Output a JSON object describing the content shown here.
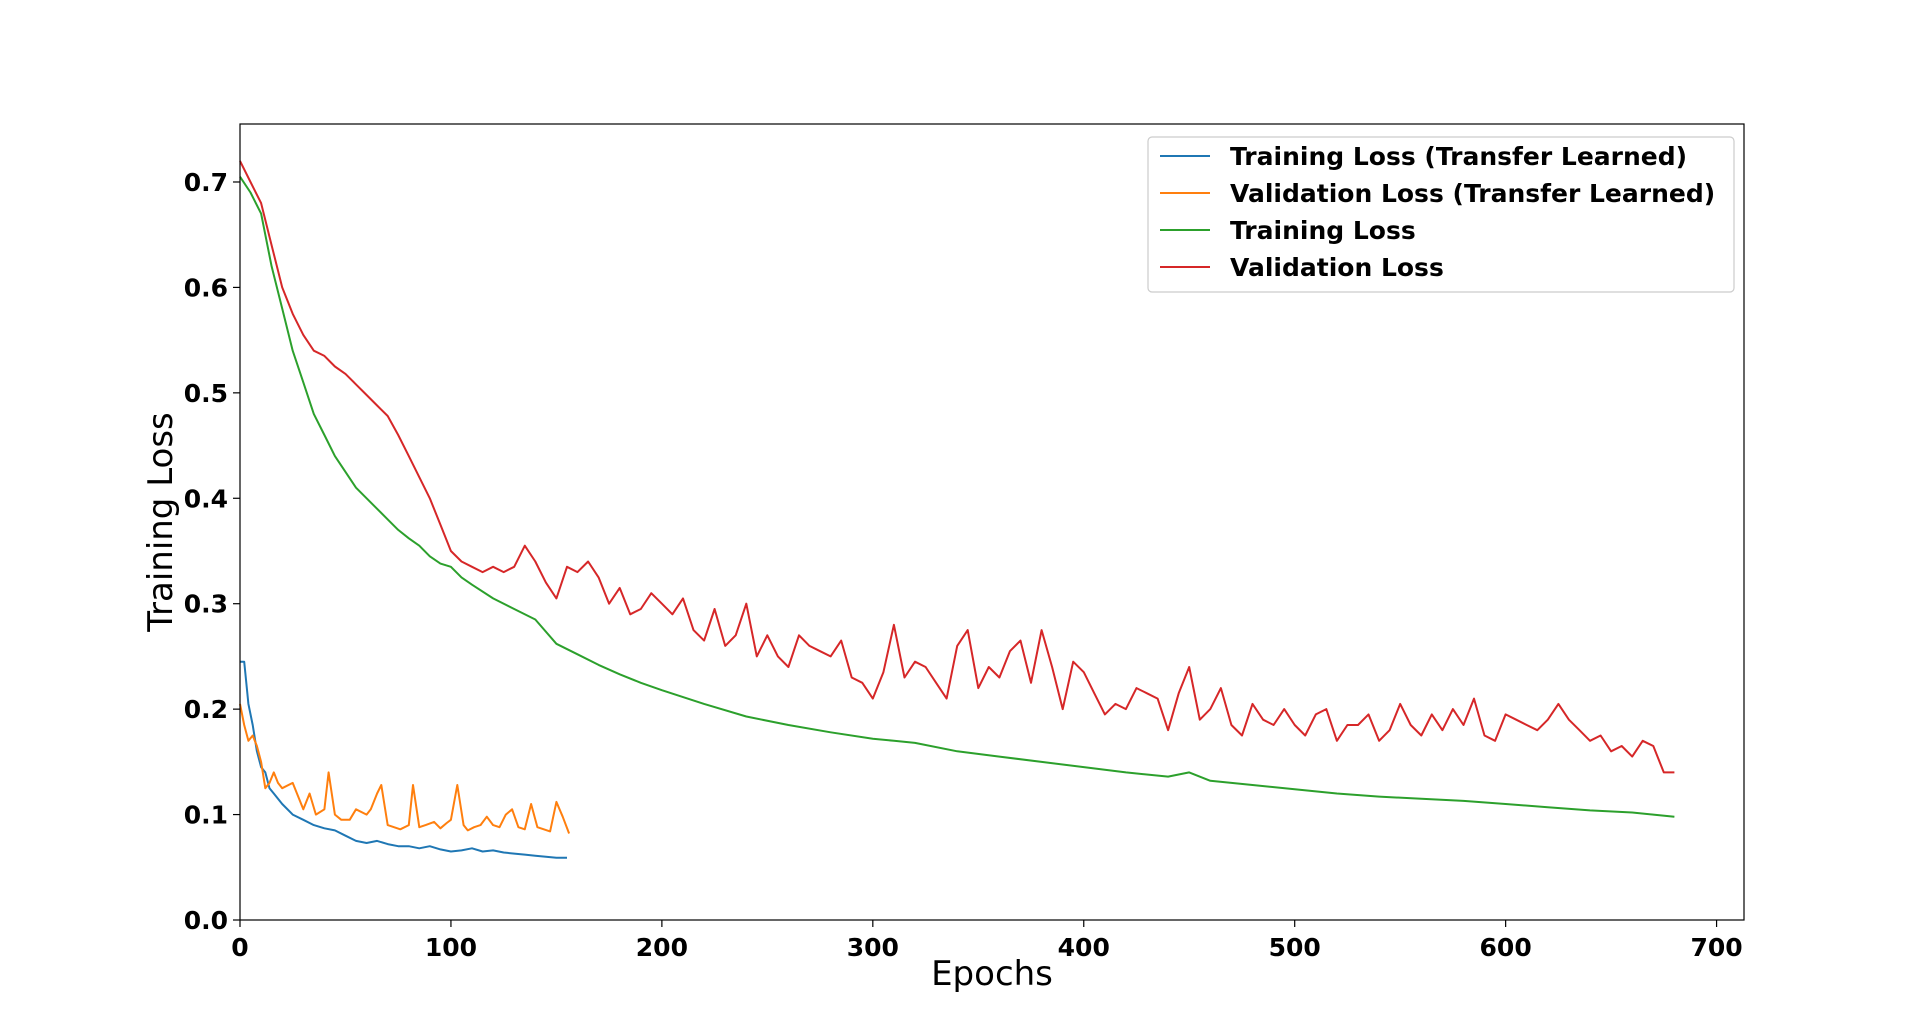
{
  "chart_data": {
    "type": "line",
    "title": "",
    "xlabel": "Epochs",
    "ylabel": "Training Loss",
    "xlim": [
      0,
      713
    ],
    "ylim": [
      0,
      0.755
    ],
    "xticks": [
      0,
      100,
      200,
      300,
      400,
      500,
      600,
      700
    ],
    "yticks": [
      0.0,
      0.1,
      0.2,
      0.3,
      0.4,
      0.5,
      0.6,
      0.7
    ],
    "xtick_labels": [
      "0",
      "100",
      "200",
      "300",
      "400",
      "500",
      "600",
      "700"
    ],
    "ytick_labels": [
      "0.0",
      "0.1",
      "0.2",
      "0.3",
      "0.4",
      "0.5",
      "0.6",
      "0.7"
    ],
    "grid": false,
    "legend_position": "top-right",
    "series": [
      {
        "name": "Training Loss (Transfer Learned)",
        "color": "#1f77b4",
        "x": [
          0,
          2,
          4,
          6,
          8,
          10,
          12,
          14,
          16,
          18,
          20,
          25,
          30,
          35,
          40,
          45,
          50,
          55,
          60,
          65,
          70,
          75,
          80,
          85,
          90,
          95,
          100,
          105,
          110,
          115,
          120,
          125,
          130,
          135,
          140,
          145,
          150,
          155
        ],
        "y": [
          0.245,
          0.245,
          0.205,
          0.185,
          0.16,
          0.145,
          0.14,
          0.125,
          0.12,
          0.115,
          0.11,
          0.1,
          0.095,
          0.09,
          0.087,
          0.085,
          0.08,
          0.075,
          0.073,
          0.075,
          0.072,
          0.07,
          0.07,
          0.068,
          0.07,
          0.067,
          0.065,
          0.066,
          0.068,
          0.065,
          0.066,
          0.064,
          0.063,
          0.062,
          0.061,
          0.06,
          0.059,
          0.059
        ]
      },
      {
        "name": "Validation Loss (Transfer Learned)",
        "color": "#ff7f0e",
        "x": [
          0,
          2,
          4,
          6,
          8,
          10,
          12,
          14,
          16,
          18,
          20,
          25,
          30,
          33,
          36,
          40,
          42,
          45,
          48,
          52,
          55,
          60,
          62,
          65,
          67,
          70,
          73,
          76,
          80,
          82,
          85,
          88,
          92,
          95,
          98,
          100,
          103,
          106,
          108,
          111,
          114,
          117,
          120,
          123,
          126,
          129,
          132,
          135,
          138,
          141,
          144,
          147,
          150,
          153,
          156
        ],
        "y": [
          0.205,
          0.185,
          0.17,
          0.175,
          0.165,
          0.15,
          0.125,
          0.13,
          0.14,
          0.13,
          0.125,
          0.13,
          0.105,
          0.12,
          0.1,
          0.105,
          0.14,
          0.1,
          0.095,
          0.095,
          0.105,
          0.1,
          0.105,
          0.12,
          0.128,
          0.09,
          0.088,
          0.086,
          0.09,
          0.128,
          0.088,
          0.09,
          0.093,
          0.087,
          0.092,
          0.095,
          0.128,
          0.09,
          0.085,
          0.088,
          0.09,
          0.098,
          0.09,
          0.088,
          0.1,
          0.105,
          0.088,
          0.086,
          0.11,
          0.088,
          0.086,
          0.084,
          0.112,
          0.098,
          0.082
        ]
      },
      {
        "name": "Training Loss",
        "color": "#2ca02c",
        "x": [
          0,
          5,
          10,
          15,
          20,
          25,
          30,
          35,
          40,
          45,
          50,
          55,
          60,
          65,
          70,
          75,
          80,
          85,
          90,
          95,
          100,
          105,
          110,
          120,
          130,
          140,
          150,
          160,
          170,
          180,
          190,
          200,
          220,
          240,
          260,
          280,
          300,
          310,
          320,
          340,
          360,
          380,
          400,
          420,
          440,
          450,
          460,
          480,
          500,
          520,
          540,
          560,
          580,
          600,
          620,
          640,
          660,
          670,
          680
        ],
        "y": [
          0.705,
          0.69,
          0.67,
          0.62,
          0.58,
          0.54,
          0.51,
          0.48,
          0.46,
          0.44,
          0.425,
          0.41,
          0.4,
          0.39,
          0.38,
          0.37,
          0.362,
          0.355,
          0.345,
          0.338,
          0.335,
          0.325,
          0.318,
          0.305,
          0.295,
          0.285,
          0.262,
          0.252,
          0.242,
          0.233,
          0.225,
          0.218,
          0.205,
          0.193,
          0.185,
          0.178,
          0.172,
          0.17,
          0.168,
          0.16,
          0.155,
          0.15,
          0.145,
          0.14,
          0.136,
          0.14,
          0.132,
          0.128,
          0.124,
          0.12,
          0.117,
          0.115,
          0.113,
          0.11,
          0.107,
          0.104,
          0.102,
          0.1,
          0.098
        ]
      },
      {
        "name": "Validation Loss",
        "color": "#d62728",
        "x": [
          0,
          5,
          10,
          15,
          20,
          25,
          30,
          35,
          40,
          45,
          50,
          55,
          60,
          65,
          70,
          75,
          80,
          85,
          90,
          95,
          100,
          105,
          110,
          115,
          120,
          125,
          130,
          135,
          140,
          145,
          150,
          155,
          160,
          165,
          170,
          175,
          180,
          185,
          190,
          195,
          200,
          205,
          210,
          215,
          220,
          225,
          230,
          235,
          240,
          245,
          250,
          255,
          260,
          265,
          270,
          275,
          280,
          285,
          290,
          295,
          300,
          305,
          310,
          315,
          320,
          325,
          330,
          335,
          340,
          345,
          350,
          355,
          360,
          365,
          370,
          375,
          380,
          385,
          390,
          395,
          400,
          405,
          410,
          415,
          420,
          425,
          430,
          435,
          440,
          445,
          450,
          455,
          460,
          465,
          470,
          475,
          480,
          485,
          490,
          495,
          500,
          505,
          510,
          515,
          520,
          525,
          530,
          535,
          540,
          545,
          550,
          555,
          560,
          565,
          570,
          575,
          580,
          585,
          590,
          595,
          600,
          605,
          610,
          615,
          620,
          625,
          630,
          635,
          640,
          645,
          650,
          655,
          660,
          665,
          670,
          675,
          680
        ],
        "y": [
          0.72,
          0.7,
          0.68,
          0.64,
          0.6,
          0.575,
          0.555,
          0.54,
          0.535,
          0.525,
          0.518,
          0.508,
          0.498,
          0.488,
          0.478,
          0.46,
          0.44,
          0.42,
          0.4,
          0.375,
          0.35,
          0.34,
          0.335,
          0.33,
          0.335,
          0.33,
          0.335,
          0.355,
          0.34,
          0.32,
          0.305,
          0.335,
          0.33,
          0.34,
          0.325,
          0.3,
          0.315,
          0.29,
          0.295,
          0.31,
          0.3,
          0.29,
          0.305,
          0.275,
          0.265,
          0.295,
          0.26,
          0.27,
          0.3,
          0.25,
          0.27,
          0.25,
          0.24,
          0.27,
          0.26,
          0.255,
          0.25,
          0.265,
          0.23,
          0.225,
          0.21,
          0.235,
          0.28,
          0.23,
          0.245,
          0.24,
          0.225,
          0.21,
          0.26,
          0.275,
          0.22,
          0.24,
          0.23,
          0.255,
          0.265,
          0.225,
          0.275,
          0.24,
          0.2,
          0.245,
          0.235,
          0.215,
          0.195,
          0.205,
          0.2,
          0.22,
          0.215,
          0.21,
          0.18,
          0.215,
          0.24,
          0.19,
          0.2,
          0.22,
          0.185,
          0.175,
          0.205,
          0.19,
          0.185,
          0.2,
          0.185,
          0.175,
          0.195,
          0.2,
          0.17,
          0.185,
          0.185,
          0.195,
          0.17,
          0.18,
          0.205,
          0.185,
          0.175,
          0.195,
          0.18,
          0.2,
          0.185,
          0.21,
          0.175,
          0.17,
          0.195,
          0.19,
          0.185,
          0.18,
          0.19,
          0.205,
          0.19,
          0.18,
          0.17,
          0.175,
          0.16,
          0.165,
          0.155,
          0.17,
          0.165,
          0.14,
          0.14
        ]
      }
    ]
  }
}
